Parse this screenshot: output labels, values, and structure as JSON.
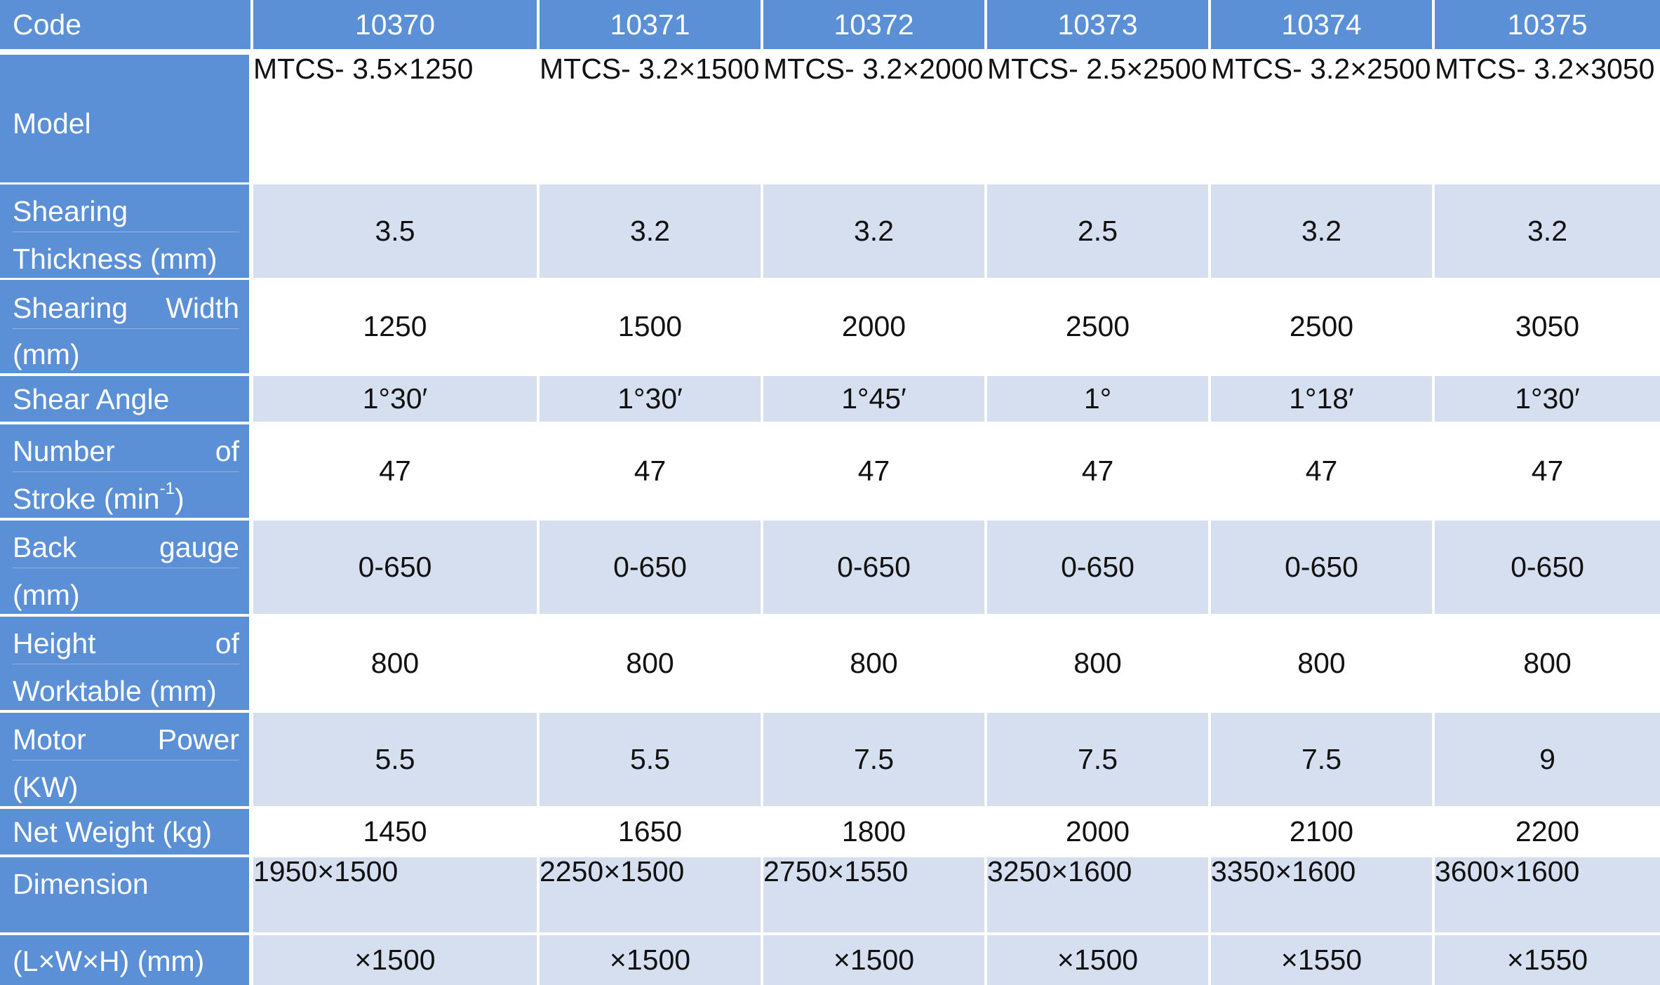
{
  "table": {
    "columns": [
      "Code",
      "10370",
      "10371",
      "10372",
      "10373",
      "10374",
      "10375"
    ],
    "rows": [
      {
        "label_lines": [
          "Model"
        ],
        "values_top": [
          "MTCS-",
          "MTCS-",
          "MTCS-",
          "MTCS-",
          "MTCS-",
          "MTCS-"
        ],
        "values_bottom": [
          "3.5×1250",
          "3.2×1500",
          "3.2×2000",
          "2.5×2500",
          "3.2×2500",
          "3.2×3050"
        ]
      },
      {
        "label_lines": [
          "Shearing",
          "Thickness (mm)"
        ],
        "values": [
          "3.5",
          "3.2",
          "3.2",
          "2.5",
          "3.2",
          "3.2"
        ]
      },
      {
        "label_lines": [
          "Shearing Width",
          "(mm)"
        ],
        "label_justify_words": [
          "Shearing",
          "Width"
        ],
        "values": [
          "1250",
          "1500",
          "2000",
          "2500",
          "2500",
          "3050"
        ]
      },
      {
        "label_lines": [
          "Shear Angle"
        ],
        "values": [
          "1°30′",
          "1°30′",
          "1°45′",
          "1°",
          "1°18′",
          "1°30′"
        ]
      },
      {
        "label_lines": [
          "Number of",
          "Stroke (min",
          "-1",
          ")"
        ],
        "label_justify_words": [
          "Number",
          "of"
        ],
        "values": [
          "47",
          "47",
          "47",
          "47",
          "47",
          "47"
        ]
      },
      {
        "label_lines": [
          "Back gauge",
          "(mm)"
        ],
        "label_justify_words": [
          "Back",
          "gauge"
        ],
        "values": [
          "0-650",
          "0-650",
          "0-650",
          "0-650",
          "0-650",
          "0-650"
        ]
      },
      {
        "label_lines": [
          "Height of",
          "Worktable (mm)"
        ],
        "label_justify_words": [
          "Height",
          "of"
        ],
        "values": [
          "800",
          "800",
          "800",
          "800",
          "800",
          "800"
        ]
      },
      {
        "label_lines": [
          "Motor Power",
          "(KW)"
        ],
        "label_justify_words": [
          "Motor",
          "Power"
        ],
        "values": [
          "5.5",
          "5.5",
          "7.5",
          "7.5",
          "7.5",
          "9"
        ]
      },
      {
        "label_lines": [
          "Net Weight (kg)"
        ],
        "values": [
          "1450",
          "1650",
          "1800",
          "2000",
          "2100",
          "2200"
        ]
      },
      {
        "label_lines": [
          "Dimension"
        ],
        "values": [
          "1950×1500",
          "2250×1500",
          "2750×1550",
          "3250×1600",
          "3350×1600",
          "3600×1600"
        ]
      },
      {
        "label_lines": [
          "(L×W×H) (mm)"
        ],
        "values": [
          "×1500",
          "×1500",
          "×1500",
          "×1500",
          "×1550",
          "×1550"
        ]
      }
    ]
  },
  "colors": {
    "header_blue": "#5b8fd6",
    "row_alt": "#d5dff0",
    "row_white": "#ffffff",
    "text_dark": "#111111",
    "text_light": "#ffffff"
  }
}
